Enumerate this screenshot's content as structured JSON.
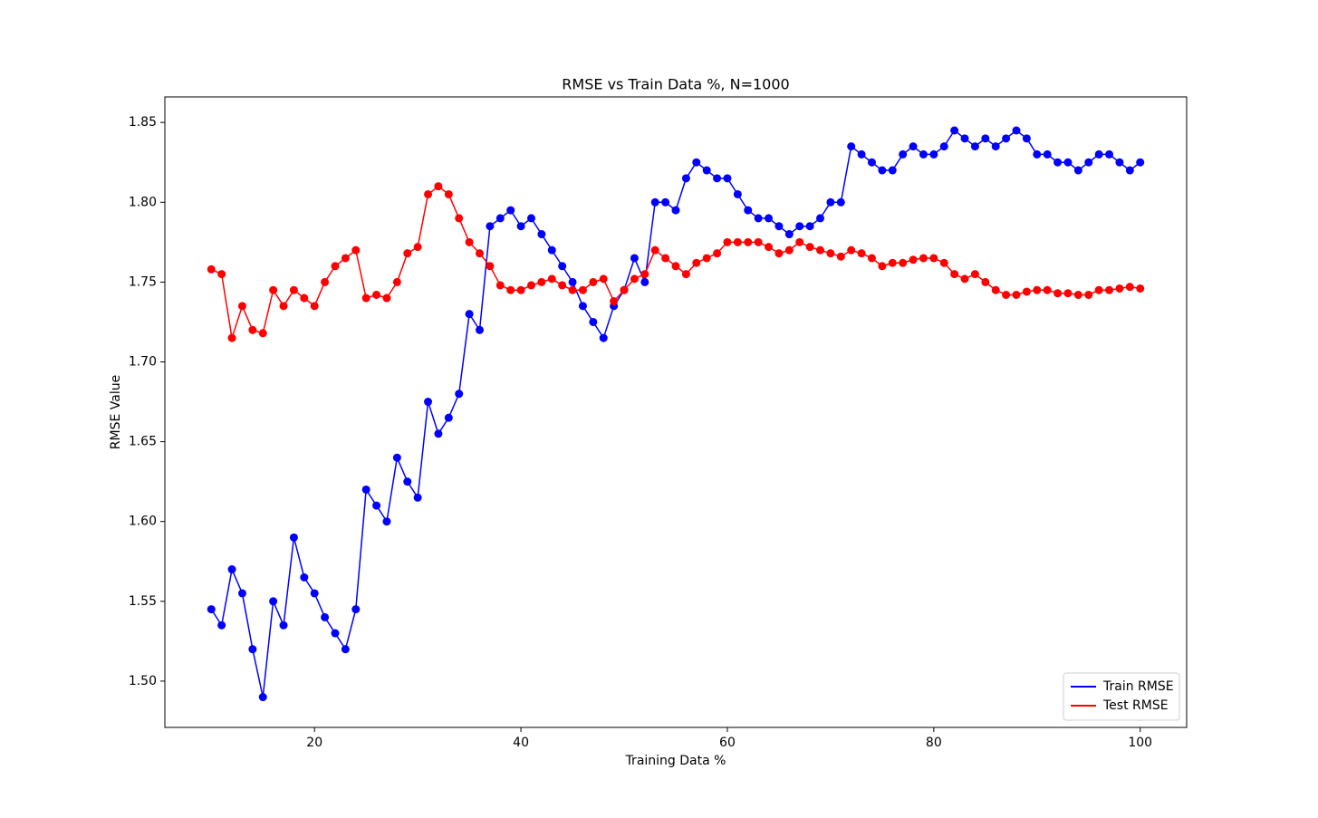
{
  "chart_data": {
    "type": "line",
    "title": "RMSE vs Train Data %, N=1000",
    "x_label": "Training Data %",
    "y_label": "RMSE Value",
    "x": [
      10,
      11,
      12,
      13,
      14,
      15,
      16,
      17,
      18,
      19,
      20,
      21,
      22,
      23,
      24,
      25,
      26,
      27,
      28,
      29,
      30,
      31,
      32,
      33,
      34,
      35,
      36,
      37,
      38,
      39,
      40,
      41,
      42,
      43,
      44,
      45,
      46,
      47,
      48,
      49,
      50,
      51,
      52,
      53,
      54,
      55,
      56,
      57,
      58,
      59,
      60,
      61,
      62,
      63,
      64,
      65,
      66,
      67,
      68,
      69,
      70,
      71,
      72,
      73,
      74,
      75,
      76,
      77,
      78,
      79,
      80,
      81,
      82,
      83,
      84,
      85,
      86,
      87,
      88,
      89,
      90,
      91,
      92,
      93,
      94,
      95,
      96,
      97,
      98,
      99,
      100
    ],
    "series": [
      {
        "name": "Train RMSE",
        "color": "#0000ff",
        "values": [
          1.545,
          1.535,
          1.57,
          1.555,
          1.52,
          1.49,
          1.55,
          1.535,
          1.59,
          1.565,
          1.555,
          1.54,
          1.53,
          1.52,
          1.545,
          1.62,
          1.61,
          1.6,
          1.64,
          1.625,
          1.615,
          1.675,
          1.655,
          1.665,
          1.68,
          1.73,
          1.72,
          1.785,
          1.79,
          1.795,
          1.785,
          1.79,
          1.78,
          1.77,
          1.76,
          1.75,
          1.735,
          1.725,
          1.715,
          1.735,
          1.745,
          1.765,
          1.75,
          1.8,
          1.8,
          1.795,
          1.815,
          1.825,
          1.82,
          1.815,
          1.815,
          1.805,
          1.795,
          1.79,
          1.79,
          1.785,
          1.78,
          1.785,
          1.785,
          1.79,
          1.8,
          1.8,
          1.835,
          1.83,
          1.825,
          1.82,
          1.82,
          1.83,
          1.835,
          1.83,
          1.83,
          1.835,
          1.845,
          1.84,
          1.835,
          1.84,
          1.835,
          1.84,
          1.845,
          1.84,
          1.83,
          1.83,
          1.825,
          1.825,
          1.82,
          1.825,
          1.83,
          1.83,
          1.825,
          1.82,
          1.825
        ]
      },
      {
        "name": "Test RMSE",
        "color": "#ff0000",
        "values": [
          1.758,
          1.755,
          1.715,
          1.735,
          1.72,
          1.718,
          1.745,
          1.735,
          1.745,
          1.74,
          1.735,
          1.75,
          1.76,
          1.765,
          1.77,
          1.74,
          1.742,
          1.74,
          1.75,
          1.768,
          1.772,
          1.805,
          1.81,
          1.805,
          1.79,
          1.775,
          1.768,
          1.76,
          1.748,
          1.745,
          1.745,
          1.748,
          1.75,
          1.752,
          1.748,
          1.745,
          1.745,
          1.75,
          1.752,
          1.738,
          1.745,
          1.752,
          1.755,
          1.77,
          1.765,
          1.76,
          1.755,
          1.762,
          1.765,
          1.768,
          1.775,
          1.775,
          1.775,
          1.775,
          1.772,
          1.768,
          1.77,
          1.775,
          1.772,
          1.77,
          1.768,
          1.766,
          1.77,
          1.768,
          1.765,
          1.76,
          1.762,
          1.762,
          1.764,
          1.765,
          1.765,
          1.762,
          1.755,
          1.752,
          1.755,
          1.75,
          1.745,
          1.742,
          1.742,
          1.744,
          1.745,
          1.745,
          1.743,
          1.743,
          1.742,
          1.742,
          1.745,
          1.745,
          1.746,
          1.747,
          1.746
        ]
      }
    ],
    "xlim": [
      5.5,
      104.5
    ],
    "ylim": [
      1.471,
      1.866
    ],
    "xticks": [
      20,
      40,
      60,
      80,
      100
    ],
    "yticks": [
      {
        "value": 1.5,
        "label": "1.50"
      },
      1.55,
      {
        "value": 1.6,
        "label": "1.60"
      },
      1.65,
      {
        "value": 1.7,
        "label": "1.70"
      },
      1.75,
      {
        "value": 1.8,
        "label": "1.80"
      },
      1.85
    ],
    "legend": "lower right",
    "grid": false
  }
}
